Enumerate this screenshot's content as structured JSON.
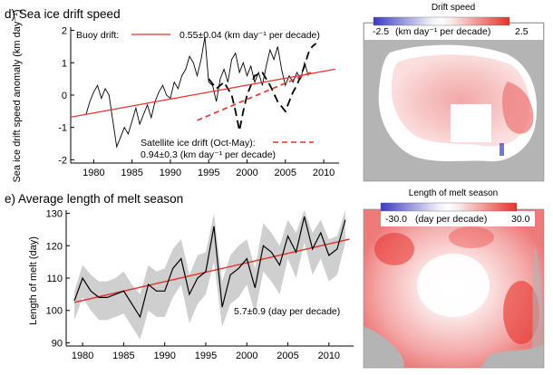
{
  "colors": {
    "trend": "#e8302a",
    "band": "#cfcfcf",
    "series": "#000000",
    "map_land": "#b4b4b4",
    "map_ocean": "#ffffff",
    "cbar_neg": "#3b3bbf",
    "cbar_pos": "#e8302a"
  },
  "chart_data": [
    {
      "id": "d",
      "type": "line",
      "title": "d) Sea ice drift speed",
      "ylabel": "Sea ice drift speed anomaly (km day⁻¹)",
      "xlim": [
        1977,
        2012
      ],
      "ylim": [
        -2.1,
        2.1
      ],
      "x_ticks": [
        1980,
        1985,
        1990,
        1995,
        2000,
        2005,
        2010
      ],
      "y_ticks": [
        -2,
        -1,
        0,
        1,
        2
      ],
      "buoy_legend": "Buoy drift:",
      "buoy_trend_text": "0.55±0.04 (km day⁻¹ per decade)",
      "sat_legend": "Satellite ice drift (Oct-May):",
      "sat_trend_text": "0.94±0.3 (km day⁻¹ per decade)",
      "series": [
        {
          "name": "Buoy drift",
          "style": "solid",
          "x": [
            1979.0,
            1979.5,
            1980.0,
            1980.5,
            1981.0,
            1981.5,
            1982.0,
            1982.5,
            1983.0,
            1983.5,
            1984.0,
            1984.5,
            1985.0,
            1985.5,
            1986.0,
            1986.5,
            1987.0,
            1987.5,
            1988.0,
            1988.5,
            1989.0,
            1989.5,
            1990.0,
            1990.5,
            1991.0,
            1991.5,
            1992.0,
            1992.5,
            1993.0,
            1993.5,
            1994.0,
            1994.5,
            1995.0,
            1995.5,
            1996.0,
            1996.5,
            1997.0,
            1997.5,
            1998.0,
            1998.5,
            1999.0,
            1999.5,
            2000.0,
            2000.5,
            2001.0,
            2001.5,
            2002.0,
            2002.5,
            2003.0,
            2003.5,
            2004.0,
            2004.5,
            2005.0,
            2005.5,
            2006.0,
            2006.5,
            2007.0,
            2007.5,
            2008.0
          ],
          "y": [
            -0.6,
            -0.2,
            0.1,
            0.3,
            -0.1,
            0.2,
            0.0,
            -0.8,
            -1.6,
            -1.3,
            -1.0,
            -1.2,
            -0.8,
            -0.4,
            -0.9,
            -0.6,
            -0.3,
            -0.7,
            -0.2,
            0.1,
            0.3,
            0.0,
            -0.1,
            0.4,
            0.2,
            0.6,
            0.8,
            1.2,
            1.0,
            0.6,
            1.1,
            1.8,
            0.4,
            0.3,
            -0.2,
            0.5,
            0.8,
            0.4,
            1.1,
            1.3,
            0.7,
            1.0,
            0.6,
            0.9,
            0.4,
            0.7,
            0.3,
            0.9,
            1.4,
            1.1,
            1.5,
            0.8,
            0.3,
            0.6,
            0.4,
            0.7,
            0.5,
            1.0,
            0.6
          ]
        },
        {
          "name": "Satellite ice drift (Oct-May)",
          "style": "dashed",
          "x": [
            1995.0,
            1996.0,
            1997.0,
            1998.0,
            1998.5,
            1999.0,
            1999.5,
            2000.0,
            2001.0,
            2002.0,
            2003.0,
            2004.0,
            2005.0,
            2005.5,
            2006.0,
            2006.5,
            2007.0,
            2007.5,
            2008.0,
            2008.5,
            2009.0
          ],
          "y": [
            0.5,
            0.2,
            0.4,
            0.0,
            -0.5,
            -1.1,
            -0.5,
            0.0,
            0.6,
            0.7,
            0.3,
            -0.2,
            -0.5,
            -0.2,
            0.1,
            0.3,
            0.6,
            0.9,
            1.3,
            1.5,
            1.6
          ]
        },
        {
          "name": "Buoy trend",
          "style": "trend-solid",
          "x": [
            1977.0,
            2011.5
          ],
          "y": [
            -0.68,
            0.8
          ]
        },
        {
          "name": "Satellite trend",
          "style": "trend-dashed",
          "x": [
            1993.5,
            2008.5
          ],
          "y": [
            -0.78,
            0.72
          ]
        }
      ]
    },
    {
      "id": "e",
      "type": "line",
      "title": "e) Average length of melt season",
      "ylabel": "Length of melt (day)",
      "xlim": [
        1978,
        2013
      ],
      "ylim": [
        89,
        131
      ],
      "x_ticks": [
        1980,
        1985,
        1990,
        1995,
        2000,
        2005,
        2010
      ],
      "y_ticks": [
        90,
        100,
        110,
        120,
        130
      ],
      "trend_text": "5.7±0.9 (day per decade)",
      "x": [
        1979,
        1980,
        1981,
        1982,
        1983,
        1984,
        1985,
        1986,
        1987,
        1988,
        1989,
        1990,
        1991,
        1992,
        1993,
        1994,
        1995,
        1996,
        1997,
        1998,
        1999,
        2000,
        2001,
        2002,
        2003,
        2004,
        2005,
        2006,
        2007,
        2008,
        2009,
        2010,
        2011,
        2012
      ],
      "values": [
        103,
        110,
        106,
        104,
        104,
        105,
        106,
        102,
        98,
        108,
        106,
        106,
        113,
        116,
        105,
        110,
        112,
        126,
        101,
        111,
        113,
        116,
        107,
        120,
        118,
        114,
        123,
        118,
        129,
        119,
        124,
        117,
        119,
        128
      ],
      "band_upper": [
        106,
        114,
        111,
        109,
        109,
        110,
        112,
        108,
        105,
        114,
        112,
        113,
        119,
        122,
        111,
        117,
        118,
        130,
        109,
        117,
        120,
        122,
        113,
        127,
        124,
        120,
        128,
        124,
        131,
        124,
        128,
        122,
        123,
        131
      ],
      "band_lower": [
        97,
        104,
        100,
        97,
        97,
        98,
        99,
        95,
        91,
        100,
        98,
        98,
        104,
        108,
        96,
        102,
        105,
        115,
        95,
        102,
        104,
        108,
        99,
        112,
        109,
        105,
        116,
        110,
        121,
        111,
        116,
        109,
        111,
        121
      ],
      "trend": {
        "x": [
          1979,
          2012.5
        ],
        "y": [
          102.5,
          122
        ]
      }
    }
  ],
  "maps": [
    {
      "id": "drift",
      "title": "Drift speed",
      "cbar_min": "-2.5",
      "cbar_label": "(km day⁻¹ per decade)",
      "cbar_max": "2.5"
    },
    {
      "id": "melt",
      "title": "Length of melt season",
      "cbar_min": "-30.0",
      "cbar_label": "(day per decade)",
      "cbar_max": "30.0"
    }
  ]
}
